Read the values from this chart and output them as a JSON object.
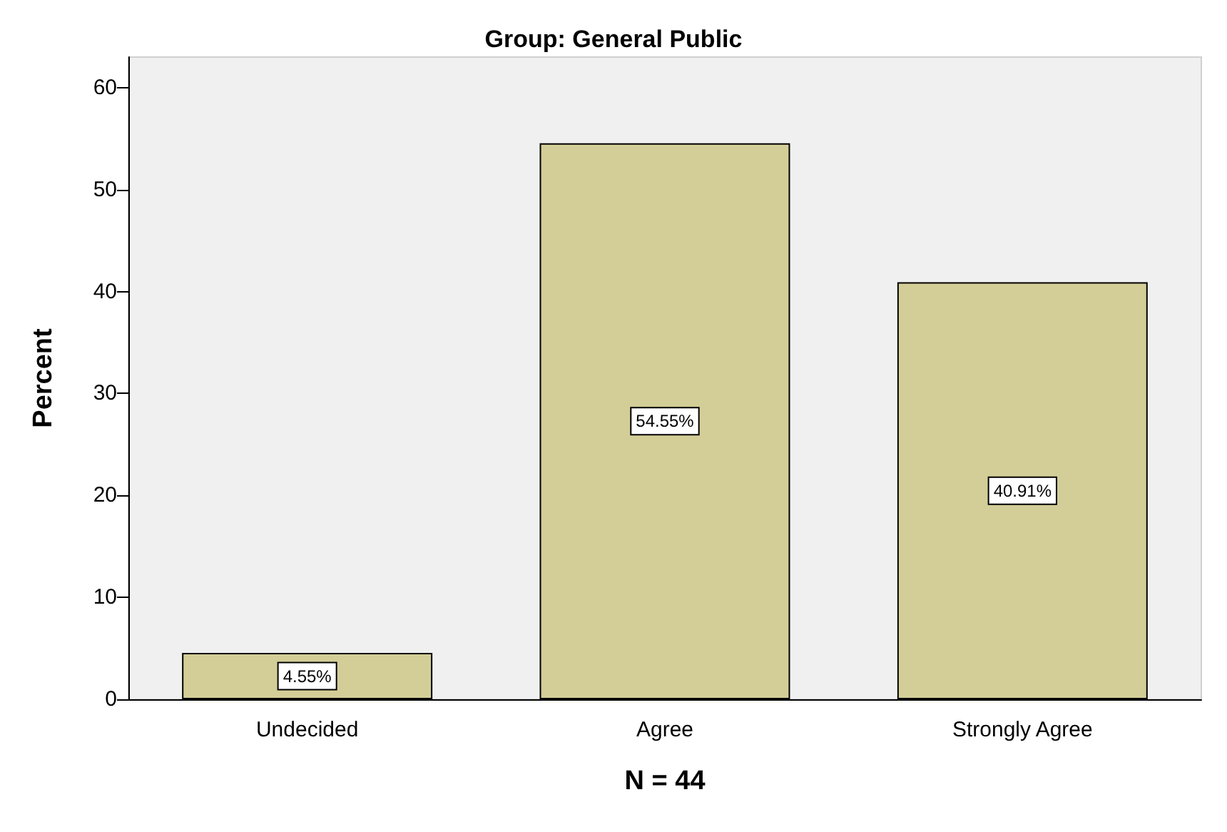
{
  "chart_data": {
    "type": "bar",
    "title": "Group: General Public",
    "xlabel": "N = 44",
    "ylabel": "Percent",
    "categories": [
      "Undecided",
      "Agree",
      "Strongly Agree"
    ],
    "values": [
      4.55,
      54.55,
      40.91
    ],
    "value_labels": [
      "4.55%",
      "54.55%",
      "40.91%"
    ],
    "color": "#d3ce97",
    "ylim": [
      0,
      63
    ],
    "yticks": [
      0,
      10,
      20,
      30,
      40,
      50,
      60
    ],
    "grid": false
  }
}
